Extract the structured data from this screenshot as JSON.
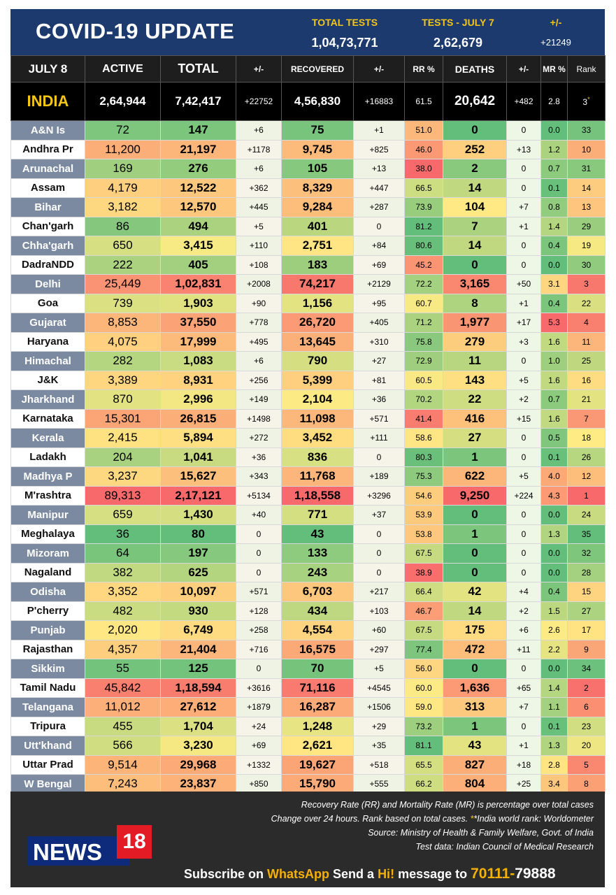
{
  "header": {
    "title": "COVID-19 UPDATE",
    "total_tests_label": "TOTAL TESTS",
    "total_tests_value": "1,04,73,771",
    "tests_day_label": "TESTS - JULY 7",
    "tests_day_value": "2,62,679",
    "change_label": "+/-",
    "change_value": "+21249"
  },
  "columns": {
    "date": "JULY 8",
    "active": "ACTIVE",
    "total": "TOTAL",
    "total_change": "+/-",
    "recovered": "RECOVERED",
    "rec_change": "+/-",
    "rr": "RR %",
    "deaths": "DEATHS",
    "death_change": "+/-",
    "mr": "MR %",
    "rank": "Rank"
  },
  "india": {
    "name": "INDIA",
    "active": "2,64,944",
    "total": "7,42,417",
    "total_change": "+22752",
    "recovered": "4,56,830",
    "rec_change": "+16883",
    "rr": "61.5",
    "deaths": "20,642",
    "death_change": "+482",
    "mr": "2.8",
    "rank": "3",
    "rank_mark": "*"
  },
  "states": [
    [
      "A&N Is",
      "72",
      "147",
      "+6",
      "75",
      "+1",
      "51.0",
      "0",
      "0",
      "0.0",
      "33"
    ],
    [
      "Andhra Pr",
      "11,200",
      "21,197",
      "+1178",
      "9,745",
      "+825",
      "46.0",
      "252",
      "+13",
      "1.2",
      "10"
    ],
    [
      "Arunachal",
      "169",
      "276",
      "+6",
      "105",
      "+13",
      "38.0",
      "2",
      "0",
      "0.7",
      "31"
    ],
    [
      "Assam",
      "4,179",
      "12,522",
      "+362",
      "8,329",
      "+447",
      "66.5",
      "14",
      "0",
      "0.1",
      "14"
    ],
    [
      "Bihar",
      "3,182",
      "12,570",
      "+445",
      "9,284",
      "+287",
      "73.9",
      "104",
      "+7",
      "0.8",
      "13"
    ],
    [
      "Chan'garh",
      "86",
      "494",
      "+5",
      "401",
      "0",
      "81.2",
      "7",
      "+1",
      "1.4",
      "29"
    ],
    [
      "Chha'garh",
      "650",
      "3,415",
      "+110",
      "2,751",
      "+84",
      "80.6",
      "14",
      "0",
      "0.4",
      "19"
    ],
    [
      "DadraNDD",
      "222",
      "405",
      "+108",
      "183",
      "+69",
      "45.2",
      "0",
      "0",
      "0.0",
      "30"
    ],
    [
      "Delhi",
      "25,449",
      "1,02,831",
      "+2008",
      "74,217",
      "+2129",
      "72.2",
      "3,165",
      "+50",
      "3.1",
      "3"
    ],
    [
      "Goa",
      "739",
      "1,903",
      "+90",
      "1,156",
      "+95",
      "60.7",
      "8",
      "+1",
      "0.4",
      "22"
    ],
    [
      "Gujarat",
      "8,853",
      "37,550",
      "+778",
      "26,720",
      "+405",
      "71.2",
      "1,977",
      "+17",
      "5.3",
      "4"
    ],
    [
      "Haryana",
      "4,075",
      "17,999",
      "+495",
      "13,645",
      "+310",
      "75.8",
      "279",
      "+3",
      "1.6",
      "11"
    ],
    [
      "Himachal",
      "282",
      "1,083",
      "+6",
      "790",
      "+27",
      "72.9",
      "11",
      "0",
      "1.0",
      "25"
    ],
    [
      "J&K",
      "3,389",
      "8,931",
      "+256",
      "5,399",
      "+81",
      "60.5",
      "143",
      "+5",
      "1.6",
      "16"
    ],
    [
      "Jharkhand",
      "870",
      "2,996",
      "+149",
      "2,104",
      "+36",
      "70.2",
      "22",
      "+2",
      "0.7",
      "21"
    ],
    [
      "Karnataka",
      "15,301",
      "26,815",
      "+1498",
      "11,098",
      "+571",
      "41.4",
      "416",
      "+15",
      "1.6",
      "7"
    ],
    [
      "Kerala",
      "2,415",
      "5,894",
      "+272",
      "3,452",
      "+111",
      "58.6",
      "27",
      "0",
      "0.5",
      "18"
    ],
    [
      "Ladakh",
      "204",
      "1,041",
      "+36",
      "836",
      "0",
      "80.3",
      "1",
      "0",
      "0.1",
      "26"
    ],
    [
      "Madhya P",
      "3,237",
      "15,627",
      "+343",
      "11,768",
      "+189",
      "75.3",
      "622",
      "+5",
      "4.0",
      "12"
    ],
    [
      "M'rashtra",
      "89,313",
      "2,17,121",
      "+5134",
      "1,18,558",
      "+3296",
      "54.6",
      "9,250",
      "+224",
      "4.3",
      "1"
    ],
    [
      "Manipur",
      "659",
      "1,430",
      "+40",
      "771",
      "+37",
      "53.9",
      "0",
      "0",
      "0.0",
      "24"
    ],
    [
      "Meghalaya",
      "36",
      "80",
      "0",
      "43",
      "0",
      "53.8",
      "1",
      "0",
      "1.3",
      "35"
    ],
    [
      "Mizoram",
      "64",
      "197",
      "0",
      "133",
      "0",
      "67.5",
      "0",
      "0",
      "0.0",
      "32"
    ],
    [
      "Nagaland",
      "382",
      "625",
      "0",
      "243",
      "0",
      "38.9",
      "0",
      "0",
      "0.0",
      "28"
    ],
    [
      "Odisha",
      "3,352",
      "10,097",
      "+571",
      "6,703",
      "+217",
      "66.4",
      "42",
      "+4",
      "0.4",
      "15"
    ],
    [
      "P'cherry",
      "482",
      "930",
      "+128",
      "434",
      "+103",
      "46.7",
      "14",
      "+2",
      "1.5",
      "27"
    ],
    [
      "Punjab",
      "2,020",
      "6,749",
      "+258",
      "4,554",
      "+60",
      "67.5",
      "175",
      "+6",
      "2.6",
      "17"
    ],
    [
      "Rajasthan",
      "4,357",
      "21,404",
      "+716",
      "16,575",
      "+297",
      "77.4",
      "472",
      "+11",
      "2.2",
      "9"
    ],
    [
      "Sikkim",
      "55",
      "125",
      "0",
      "70",
      "+5",
      "56.0",
      "0",
      "0",
      "0.0",
      "34"
    ],
    [
      "Tamil Nadu",
      "45,842",
      "1,18,594",
      "+3616",
      "71,116",
      "+4545",
      "60.0",
      "1,636",
      "+65",
      "1.4",
      "2"
    ],
    [
      "Telangana",
      "11,012",
      "27,612",
      "+1879",
      "16,287",
      "+1506",
      "59.0",
      "313",
      "+7",
      "1.1",
      "6"
    ],
    [
      "Tripura",
      "455",
      "1,704",
      "+24",
      "1,248",
      "+29",
      "73.2",
      "1",
      "0",
      "0.1",
      "23"
    ],
    [
      "Utt'khand",
      "566",
      "3,230",
      "+69",
      "2,621",
      "+35",
      "81.1",
      "43",
      "+1",
      "1.3",
      "20"
    ],
    [
      "Uttar Prad",
      "9,514",
      "29,968",
      "+1332",
      "19,627",
      "+518",
      "65.5",
      "827",
      "+18",
      "2.8",
      "5"
    ],
    [
      "W Bengal",
      "7,243",
      "23,837",
      "+850",
      "15,790",
      "+555",
      "66.2",
      "804",
      "+25",
      "3.4",
      "8"
    ]
  ],
  "footer": {
    "note1": "Recovery Rate (RR) and Mortality Rate (MR) is percentage over total cases",
    "note2a": "Change over 24 hours. Rank based on total cases. ",
    "note2b": "*India world rank: Worldometer",
    "note3": "Source: Ministry of Health & Family Welfare, Govt. of India",
    "note4": "Test data: Indian Council of Medical Research",
    "logo_text": "NEWS",
    "logo_num": "18",
    "sub_a": "Subscribe on ",
    "sub_b": "WhatsApp",
    "sub_c": " Send a ",
    "sub_d": "Hi!",
    "sub_e": " message to ",
    "sub_f": "70111-",
    "sub_g": "79888"
  },
  "colors": {
    "header_bg": "#1c3a6e",
    "accent_gold": "#f5c518",
    "heat_high": "#f8696b",
    "heat_mid": "#ffeb84",
    "heat_low": "#63be7b"
  }
}
